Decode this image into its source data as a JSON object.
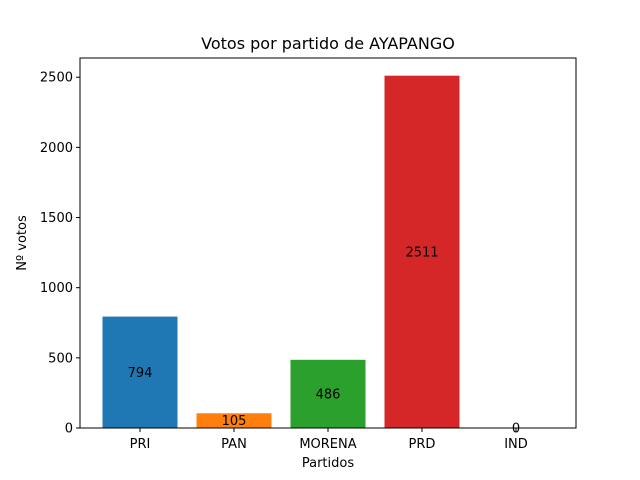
{
  "chart_data": {
    "type": "bar",
    "title": "Votos por partido de AYAPANGO",
    "xlabel": "Partidos",
    "ylabel": "Nº votos",
    "categories": [
      "PRI",
      "PAN",
      "MORENA",
      "PRD",
      "IND"
    ],
    "values": [
      794,
      105,
      486,
      2511,
      0
    ],
    "data_labels": [
      "794",
      "105",
      "486",
      "2511",
      "0"
    ],
    "colors": [
      "#1f77b4",
      "#ff7f0e",
      "#2ca02c",
      "#d62728",
      "#9467bd"
    ],
    "ylim": [
      0,
      2637
    ],
    "yticks": [
      0,
      500,
      1000,
      1500,
      2000,
      2500
    ],
    "ytick_labels": [
      "0",
      "500",
      "1000",
      "1500",
      "2000",
      "2500"
    ],
    "grid": false,
    "legend": "none"
  }
}
